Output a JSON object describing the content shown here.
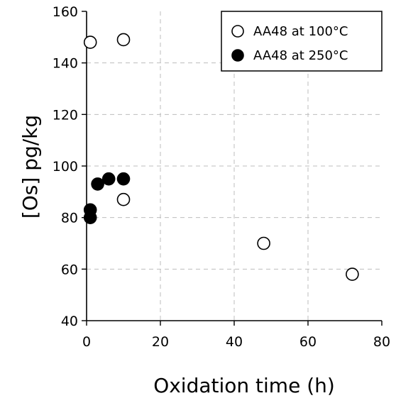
{
  "chart_data": {
    "type": "scatter",
    "xlabel": "Oxidation time (h)",
    "ylabel": "[Os] pg/kg",
    "xlim": [
      0,
      80
    ],
    "ylim": [
      40,
      160
    ],
    "xticks": [
      0,
      20,
      40,
      60,
      80
    ],
    "yticks": [
      40,
      60,
      80,
      100,
      120,
      140,
      160
    ],
    "grid": true,
    "legend_position": "top-right",
    "series": [
      {
        "name": "AA48 at 100°C",
        "marker": "open-circle",
        "color": "#000000",
        "points": [
          {
            "x": 1,
            "y": 148
          },
          {
            "x": 10,
            "y": 149
          },
          {
            "x": 10,
            "y": 87
          },
          {
            "x": 48,
            "y": 70
          },
          {
            "x": 72,
            "y": 58
          }
        ]
      },
      {
        "name": "AA48 at 250°C",
        "marker": "filled-circle",
        "color": "#000000",
        "points": [
          {
            "x": 1,
            "y": 83
          },
          {
            "x": 1,
            "y": 80
          },
          {
            "x": 3,
            "y": 93
          },
          {
            "x": 6,
            "y": 95
          },
          {
            "x": 10,
            "y": 95
          }
        ]
      }
    ]
  }
}
